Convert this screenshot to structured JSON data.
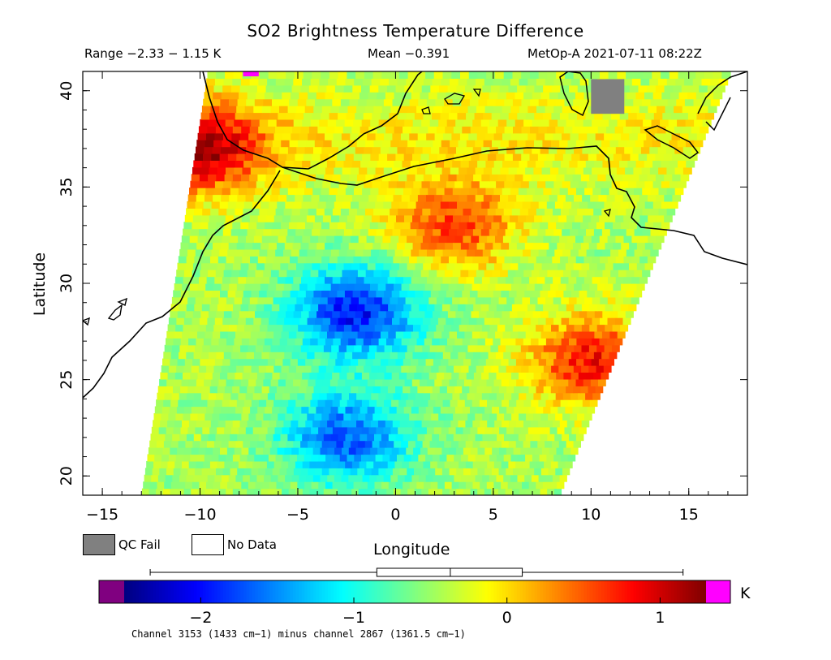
{
  "header": {
    "title": "SO2 Brightness Temperature Difference",
    "range_text": "Range −2.33 − 1.15 K",
    "mean_text": "Mean −0.391",
    "satellite_text": "MetOp-A 2021-07-11 08:22Z"
  },
  "chart_data": {
    "type": "heatmap",
    "title": "SO2 Brightness Temperature Difference",
    "xlabel": "Longitude",
    "ylabel": "Latitude",
    "xlim": [
      -16,
      18
    ],
    "ylim": [
      19,
      41
    ],
    "x_ticks": [
      -15,
      -10,
      -5,
      0,
      5,
      10,
      15
    ],
    "y_ticks": [
      20,
      25,
      30,
      35,
      40
    ],
    "value_range": [
      -2.33,
      1.15
    ],
    "mean": -0.391,
    "unit": "K",
    "colorbar": {
      "min": -2.5,
      "max": 1.3,
      "ticks": [
        -2,
        -1,
        0,
        1
      ],
      "colors": [
        "#00007f",
        "#0000ff",
        "#0080ff",
        "#00ffff",
        "#80ff80",
        "#ffff00",
        "#ff8000",
        "#ff0000",
        "#7f0000"
      ],
      "under_color": "#800080",
      "over_color": "#ff00ff",
      "boxplot": {
        "whisker_low": -2.33,
        "q1": -0.85,
        "median": -0.37,
        "q3": 0.1,
        "whisker_high": 1.15
      }
    },
    "swath": {
      "bottom_left": [
        -13,
        19
      ],
      "top_left": [
        -9.6,
        41
      ],
      "bottom_right": [
        8.4,
        19
      ],
      "top_right": [
        17.2,
        41
      ]
    },
    "anomalies": [
      {
        "label": "negative BTD (SO2) lobe",
        "lon": -2,
        "lat": 28.5,
        "value": -2.0
      },
      {
        "label": "negative BTD (SO2) lobe",
        "lon": -2.5,
        "lat": 22,
        "value": -1.7
      },
      {
        "label": "positive anomaly",
        "lon": 3,
        "lat": 33,
        "value": 0.6
      },
      {
        "label": "positive anomaly",
        "lon": -10,
        "lat": 37,
        "value": 0.9
      },
      {
        "label": "positive anomaly",
        "lon": 10,
        "lat": 26,
        "value": 0.8
      }
    ],
    "legend": [
      {
        "label": "QC Fail",
        "color": "#808080"
      },
      {
        "label": "No Data",
        "color": "#ffffff"
      }
    ]
  },
  "legend": {
    "qc_label": "QC Fail",
    "nodata_label": "No Data"
  },
  "footnote": "Channel 3153 (1433 cm−1) minus channel 2867 (1361.5 cm−1)"
}
